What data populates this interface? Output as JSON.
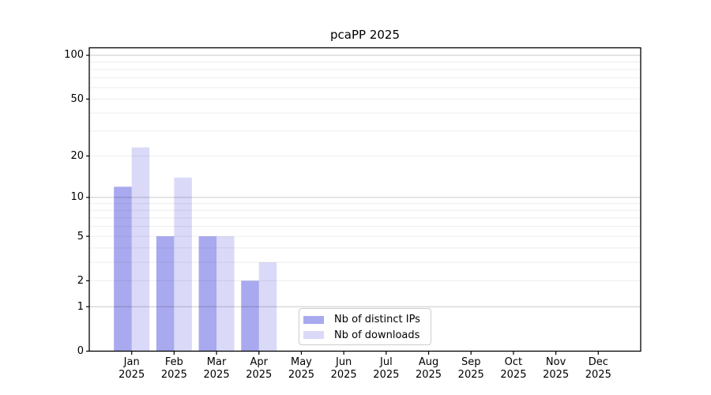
{
  "figure": {
    "background": "#ffffff"
  },
  "chart_data": {
    "type": "bar",
    "title": "pcaPP 2025",
    "categories": [
      "Jan",
      "Feb",
      "Mar",
      "Apr",
      "May",
      "Jun",
      "Jul",
      "Aug",
      "Sep",
      "Oct",
      "Nov",
      "Dec"
    ],
    "x_tick_year": "2025",
    "series": [
      {
        "name": "Nb of distinct IPs",
        "color": "#a9a9ef",
        "values": [
          12,
          5,
          5,
          2,
          0,
          0,
          0,
          0,
          0,
          0,
          0,
          0
        ]
      },
      {
        "name": "Nb of downloads",
        "color": "#dadaf8",
        "values": [
          23,
          14,
          5,
          3,
          0,
          0,
          0,
          0,
          0,
          0,
          0,
          0
        ]
      }
    ],
    "y_axis": {
      "scale": "log1p",
      "ticks": [
        0,
        1,
        2,
        5,
        10,
        20,
        50,
        100
      ],
      "ylim": [
        0,
        113
      ]
    },
    "gridlines": {
      "major": [
        1,
        10,
        100
      ],
      "minor": [
        2,
        3,
        4,
        5,
        6,
        7,
        8,
        9,
        20,
        30,
        40,
        50,
        60,
        70,
        80,
        90
      ],
      "major_color": "#c9c9c9",
      "minor_color": "#ededed"
    },
    "axis_color": "#000000",
    "legend_position": "bottom-center-left",
    "grid": true
  }
}
